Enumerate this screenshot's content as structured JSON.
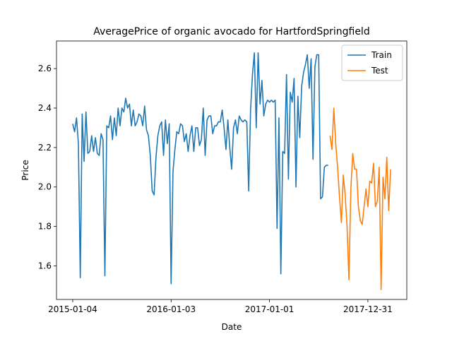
{
  "chart_data": {
    "type": "line",
    "title": "AveragePrice of organic avocado for HartfordSpringfield",
    "x_label": "Date",
    "y_label": "Price",
    "xlim": [
      "2014-11-05",
      "2018-05-24"
    ],
    "xticks": [
      "2015-01-04",
      "2016-01-03",
      "2017-01-01",
      "2017-12-31"
    ],
    "ylim": [
      1.43,
      2.74
    ],
    "yticks": [
      1.6,
      1.8,
      {
        "value": 2,
        "label": "2.0"
      },
      2.2,
      2.4,
      2.6
    ],
    "legend": "upper right",
    "series": [
      {
        "name": "Train",
        "color": "#1f77b4",
        "x": [
          "2015-01-04",
          "2015-01-11",
          "2015-01-18",
          "2015-01-25",
          "2015-02-01",
          "2015-02-08",
          "2015-02-15",
          "2015-02-22",
          "2015-03-01",
          "2015-03-08",
          "2015-03-15",
          "2015-03-22",
          "2015-03-29",
          "2015-04-05",
          "2015-04-12",
          "2015-04-19",
          "2015-04-26",
          "2015-05-03",
          "2015-05-10",
          "2015-05-17",
          "2015-05-24",
          "2015-05-31",
          "2015-06-07",
          "2015-06-14",
          "2015-06-21",
          "2015-06-28",
          "2015-07-05",
          "2015-07-12",
          "2015-07-19",
          "2015-07-26",
          "2015-08-02",
          "2015-08-09",
          "2015-08-16",
          "2015-08-23",
          "2015-08-30",
          "2015-09-06",
          "2015-09-13",
          "2015-09-20",
          "2015-09-27",
          "2015-10-04",
          "2015-10-11",
          "2015-10-18",
          "2015-10-25",
          "2015-11-01",
          "2015-11-08",
          "2015-11-15",
          "2015-11-22",
          "2015-11-29",
          "2015-12-06",
          "2015-12-13",
          "2015-12-20",
          "2015-12-27",
          "2016-01-03",
          "2016-01-10",
          "2016-01-17",
          "2016-01-24",
          "2016-01-31",
          "2016-02-07",
          "2016-02-14",
          "2016-02-21",
          "2016-02-28",
          "2016-03-06",
          "2016-03-13",
          "2016-03-20",
          "2016-03-27",
          "2016-04-03",
          "2016-04-10",
          "2016-04-17",
          "2016-04-24",
          "2016-05-01",
          "2016-05-08",
          "2016-05-15",
          "2016-05-22",
          "2016-05-29",
          "2016-06-05",
          "2016-06-12",
          "2016-06-19",
          "2016-06-26",
          "2016-07-03",
          "2016-07-10",
          "2016-07-17",
          "2016-07-24",
          "2016-07-31",
          "2016-08-07",
          "2016-08-14",
          "2016-08-21",
          "2016-08-28",
          "2016-09-04",
          "2016-09-11",
          "2016-09-18",
          "2016-09-25",
          "2016-10-02",
          "2016-10-09",
          "2016-10-16",
          "2016-10-23",
          "2016-10-30",
          "2016-11-06",
          "2016-11-13",
          "2016-11-20",
          "2016-11-27",
          "2016-12-04",
          "2016-12-11",
          "2016-12-18",
          "2016-12-25",
          "2017-01-01",
          "2017-01-08",
          "2017-01-15",
          "2017-01-22",
          "2017-01-29",
          "2017-02-05",
          "2017-02-12",
          "2017-02-19",
          "2017-02-26",
          "2017-03-05",
          "2017-03-12",
          "2017-03-19",
          "2017-03-26",
          "2017-04-02",
          "2017-04-09",
          "2017-04-16",
          "2017-04-23",
          "2017-04-30",
          "2017-05-07",
          "2017-05-14",
          "2017-05-21",
          "2017-05-28",
          "2017-06-04",
          "2017-06-11",
          "2017-06-18",
          "2017-06-25",
          "2017-07-02",
          "2017-07-09",
          "2017-07-16",
          "2017-07-23",
          "2017-07-30",
          "2017-08-06"
        ],
        "values": [
          2.32,
          2.28,
          2.35,
          2.22,
          1.54,
          2.37,
          2.13,
          2.38,
          2.17,
          2.18,
          2.26,
          2.18,
          2.25,
          2.17,
          2.16,
          2.27,
          2.24,
          1.55,
          2.31,
          2.3,
          2.36,
          2.24,
          2.35,
          2.26,
          2.4,
          2.31,
          2.4,
          2.38,
          2.45,
          2.4,
          2.42,
          2.31,
          2.39,
          2.31,
          2.33,
          2.37,
          2.36,
          2.31,
          2.41,
          2.29,
          2.26,
          2.16,
          1.98,
          1.96,
          2.15,
          2.26,
          2.31,
          2.33,
          2.16,
          2.34,
          2.22,
          2.32,
          1.51,
          2.08,
          2.19,
          2.28,
          2.27,
          2.32,
          2.31,
          2.23,
          2.27,
          2.18,
          2.26,
          2.31,
          2.18,
          2.3,
          2.3,
          2.21,
          2.24,
          2.4,
          2.16,
          2.34,
          2.36,
          2.36,
          2.27,
          2.31,
          2.31,
          2.33,
          2.33,
          2.39,
          2.3,
          2.19,
          2.34,
          2.2,
          2.09,
          2.3,
          2.34,
          2.27,
          2.36,
          2.34,
          2.33,
          2.34,
          2.33,
          1.98,
          2.39,
          2.57,
          2.68,
          2.3,
          2.68,
          2.42,
          2.54,
          2.36,
          2.42,
          2.44,
          2.43,
          2.44,
          2.43,
          2.44,
          1.79,
          2.35,
          1.56,
          2.18,
          2.17,
          2.57,
          2.04,
          2.48,
          2.43,
          2.55,
          2.0,
          2.46,
          2.25,
          2.51,
          2.58,
          2.62,
          2.67,
          2.5,
          2.65,
          2.14,
          2.61,
          2.67,
          2.67,
          1.94,
          1.95,
          2.1,
          2.11,
          2.11
        ]
      },
      {
        "name": "Test",
        "color": "#ff7f0e",
        "x": [
          "2017-08-13",
          "2017-08-20",
          "2017-08-27",
          "2017-09-03",
          "2017-09-10",
          "2017-09-17",
          "2017-09-24",
          "2017-10-01",
          "2017-10-08",
          "2017-10-15",
          "2017-10-22",
          "2017-10-29",
          "2017-11-05",
          "2017-11-12",
          "2017-11-19",
          "2017-11-26",
          "2017-12-03",
          "2017-12-10",
          "2017-12-17",
          "2017-12-24",
          "2017-12-31",
          "2018-01-07",
          "2018-01-14",
          "2018-01-21",
          "2018-01-28",
          "2018-02-04",
          "2018-02-11",
          "2018-02-18",
          "2018-02-25",
          "2018-03-04",
          "2018-03-11",
          "2018-03-18",
          "2018-03-25"
        ],
        "values": [
          2.26,
          2.19,
          2.4,
          2.22,
          2.1,
          1.95,
          1.82,
          2.06,
          1.96,
          1.8,
          1.53,
          1.99,
          2.17,
          2.09,
          2.09,
          1.9,
          1.83,
          1.81,
          1.9,
          1.99,
          1.9,
          2.03,
          2.02,
          2.12,
          1.9,
          1.93,
          2.1,
          1.48,
          2.05,
          1.94,
          2.15,
          1.88,
          2.09
        ]
      }
    ]
  }
}
